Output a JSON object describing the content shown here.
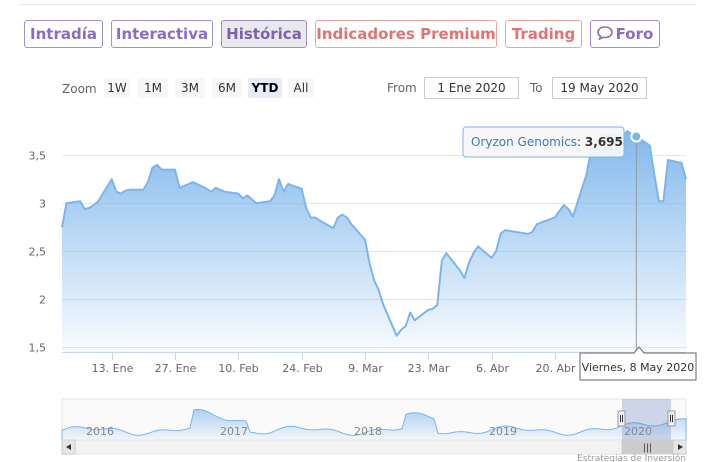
{
  "nav": {
    "tabs": [
      {
        "label": "Intradía"
      },
      {
        "label": "Interactiva"
      },
      {
        "label": "Histórica"
      },
      {
        "label": "Indicadores Premium"
      },
      {
        "label": "Trading"
      },
      {
        "label": "Foro"
      }
    ],
    "active": "Histórica"
  },
  "range_selector": {
    "zoom_label": "Zoom",
    "buttons": [
      "1W",
      "1M",
      "3M",
      "6M",
      "YTD",
      "All"
    ],
    "selected": "YTD",
    "from_label": "From",
    "from_value": "1 Ene 2020",
    "to_label": "To",
    "to_value": "19 May 2020"
  },
  "tooltip": {
    "series": "Oryzon Genomics",
    "value": "3,695",
    "date": "Viernes, 8 May 2020"
  },
  "navigator": {
    "years": [
      "2016",
      "2017",
      "2018",
      "2019",
      "2020"
    ],
    "scroll_handle": "|||"
  },
  "credits": "Estrategias de Inversión",
  "colors": {
    "line": "#7cb5ec",
    "fill_top": "#7cb5ec",
    "accent": "#8a6cc5",
    "premium": "#e07474"
  },
  "chart_data": {
    "type": "area",
    "title": "",
    "xlabel": "",
    "ylabel": "",
    "series": [
      {
        "name": "Oryzon Genomics"
      }
    ],
    "x_ticks": [
      "13. Ene",
      "27. Ene",
      "10. Feb",
      "24. Feb",
      "9. Mar",
      "23. Mar",
      "6. Abr",
      "20. Abr"
    ],
    "y_ticks": [
      "1,5",
      "2",
      "2,5",
      "3",
      "3,5"
    ],
    "ylim": [
      1.45,
      3.95
    ],
    "xlim": [
      "2020-01-02",
      "2020-05-19"
    ],
    "points": [
      [
        "2020-01-02",
        2.75
      ],
      [
        "2020-01-03",
        3.0
      ],
      [
        "2020-01-06",
        3.02
      ],
      [
        "2020-01-07",
        2.94
      ],
      [
        "2020-01-08",
        2.95
      ],
      [
        "2020-01-09",
        2.98
      ],
      [
        "2020-01-10",
        3.02
      ],
      [
        "2020-01-13",
        3.25
      ],
      [
        "2020-01-14",
        3.12
      ],
      [
        "2020-01-15",
        3.1
      ],
      [
        "2020-01-16",
        3.13
      ],
      [
        "2020-01-17",
        3.14
      ],
      [
        "2020-01-20",
        3.14
      ],
      [
        "2020-01-21",
        3.22
      ],
      [
        "2020-01-22",
        3.37
      ],
      [
        "2020-01-23",
        3.4
      ],
      [
        "2020-01-24",
        3.35
      ],
      [
        "2020-01-27",
        3.35
      ],
      [
        "2020-01-28",
        3.16
      ],
      [
        "2020-01-29",
        3.18
      ],
      [
        "2020-01-30",
        3.2
      ],
      [
        "2020-01-31",
        3.22
      ],
      [
        "2020-02-03",
        3.15
      ],
      [
        "2020-02-04",
        3.12
      ],
      [
        "2020-02-05",
        3.16
      ],
      [
        "2020-02-06",
        3.14
      ],
      [
        "2020-02-07",
        3.12
      ],
      [
        "2020-02-10",
        3.1
      ],
      [
        "2020-02-11",
        3.05
      ],
      [
        "2020-02-12",
        3.08
      ],
      [
        "2020-02-13",
        3.04
      ],
      [
        "2020-02-14",
        3.0
      ],
      [
        "2020-02-17",
        3.02
      ],
      [
        "2020-02-18",
        3.08
      ],
      [
        "2020-02-19",
        3.25
      ],
      [
        "2020-02-20",
        3.12
      ],
      [
        "2020-02-21",
        3.2
      ],
      [
        "2020-02-24",
        3.15
      ],
      [
        "2020-02-25",
        2.95
      ],
      [
        "2020-02-26",
        2.85
      ],
      [
        "2020-02-27",
        2.85
      ],
      [
        "2020-02-28",
        2.82
      ],
      [
        "2020-03-02",
        2.74
      ],
      [
        "2020-03-03",
        2.85
      ],
      [
        "2020-03-04",
        2.88
      ],
      [
        "2020-03-05",
        2.85
      ],
      [
        "2020-03-06",
        2.78
      ],
      [
        "2020-03-09",
        2.62
      ],
      [
        "2020-03-10",
        2.38
      ],
      [
        "2020-03-11",
        2.2
      ],
      [
        "2020-03-12",
        2.1
      ],
      [
        "2020-03-13",
        1.95
      ],
      [
        "2020-03-16",
        1.62
      ],
      [
        "2020-03-17",
        1.68
      ],
      [
        "2020-03-18",
        1.72
      ],
      [
        "2020-03-19",
        1.86
      ],
      [
        "2020-03-20",
        1.78
      ],
      [
        "2020-03-23",
        1.89
      ],
      [
        "2020-03-24",
        1.9
      ],
      [
        "2020-03-25",
        1.94
      ],
      [
        "2020-03-26",
        2.4
      ],
      [
        "2020-03-27",
        2.48
      ],
      [
        "2020-03-30",
        2.3
      ],
      [
        "2020-03-31",
        2.22
      ],
      [
        "2020-04-01",
        2.38
      ],
      [
        "2020-04-02",
        2.48
      ],
      [
        "2020-04-03",
        2.55
      ],
      [
        "2020-04-06",
        2.43
      ],
      [
        "2020-04-07",
        2.5
      ],
      [
        "2020-04-08",
        2.68
      ],
      [
        "2020-04-09",
        2.72
      ],
      [
        "2020-04-14",
        2.68
      ],
      [
        "2020-04-15",
        2.7
      ],
      [
        "2020-04-16",
        2.78
      ],
      [
        "2020-04-17",
        2.8
      ],
      [
        "2020-04-20",
        2.85
      ],
      [
        "2020-04-21",
        2.92
      ],
      [
        "2020-04-22",
        2.98
      ],
      [
        "2020-04-23",
        2.94
      ],
      [
        "2020-04-24",
        2.86
      ],
      [
        "2020-04-27",
        3.3
      ],
      [
        "2020-04-28",
        3.55
      ],
      [
        "2020-04-29",
        3.62
      ],
      [
        "2020-04-30",
        3.7
      ],
      [
        "2020-05-04",
        3.72
      ],
      [
        "2020-05-05",
        3.7
      ],
      [
        "2020-05-06",
        3.75
      ],
      [
        "2020-05-07",
        3.72
      ],
      [
        "2020-05-08",
        3.695
      ],
      [
        "2020-05-11",
        3.6
      ],
      [
        "2020-05-12",
        3.3
      ],
      [
        "2020-05-13",
        3.02
      ],
      [
        "2020-05-14",
        3.02
      ],
      [
        "2020-05-15",
        3.45
      ],
      [
        "2020-05-18",
        3.42
      ],
      [
        "2020-05-19",
        3.25
      ]
    ],
    "highlight": {
      "x": "2020-05-08",
      "y": 3.695
    },
    "grid": true,
    "legend": "none"
  }
}
